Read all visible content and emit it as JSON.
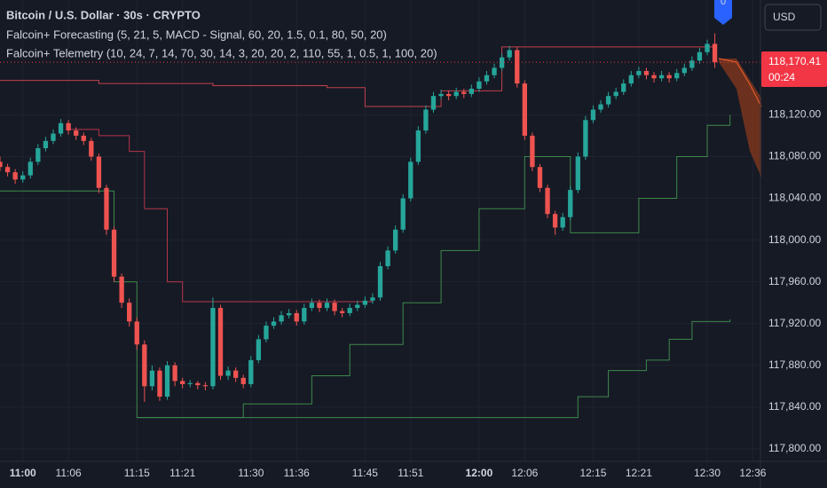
{
  "chart_data": {
    "type": "candlestick",
    "title": "Bitcoin / U.S. Dollar · 30s · CRYPTO",
    "indicators": [
      "Falcoin+ Forecasting (5, 21, 5, MACD - Signal, 60, 20, 1.5, 0.1, 80, 50, 20)",
      "Falcoin+ Telemetry (10, 24, 7, 14, 70, 30, 14, 3, 20, 20, 2, 110, 55, 1, 0.5, 1, 100, 20)"
    ],
    "currency": "USD",
    "last_price_label": "118,170.41",
    "countdown": "00:24",
    "marker_label": "0",
    "up_color": "#26a69a",
    "down_color": "#ef5350",
    "grid": true,
    "x": [
      "10:57",
      "10:58",
      "10:59",
      "11:00",
      "11:01",
      "11:02",
      "11:03",
      "11:04",
      "11:05",
      "11:06",
      "11:07",
      "11:08",
      "11:09",
      "11:10",
      "11:11",
      "11:12",
      "11:13",
      "11:14",
      "11:15",
      "11:16",
      "11:17",
      "11:18",
      "11:19",
      "11:20",
      "11:21",
      "11:22",
      "11:23",
      "11:24",
      "11:25",
      "11:26",
      "11:27",
      "11:28",
      "11:29",
      "11:30",
      "11:31",
      "11:32",
      "11:33",
      "11:34",
      "11:35",
      "11:36",
      "11:37",
      "11:38",
      "11:39",
      "11:40",
      "11:41",
      "11:42",
      "11:43",
      "11:44",
      "11:45",
      "11:46",
      "11:47",
      "11:48",
      "11:49",
      "11:50",
      "11:51",
      "11:52",
      "11:53",
      "11:54",
      "11:55",
      "11:56",
      "11:57",
      "11:58",
      "11:59",
      "12:00",
      "12:01",
      "12:02",
      "12:03",
      "12:04",
      "12:05",
      "12:06",
      "12:07",
      "12:08",
      "12:09",
      "12:10",
      "12:11",
      "12:12",
      "12:13",
      "12:14",
      "12:15",
      "12:16",
      "12:17",
      "12:18",
      "12:19",
      "12:20",
      "12:21",
      "12:22",
      "12:23",
      "12:24",
      "12:25",
      "12:26",
      "12:27",
      "12:28",
      "12:29",
      "12:30",
      "12:31"
    ],
    "candles": [
      [
        118075,
        118080,
        118066,
        118070
      ],
      [
        118070,
        118073,
        118061,
        118065
      ],
      [
        118065,
        118068,
        118054,
        118058
      ],
      [
        118058,
        118066,
        118055,
        118062
      ],
      [
        118062,
        118079,
        118059,
        118075
      ],
      [
        118075,
        118092,
        118072,
        118088
      ],
      [
        118088,
        118099,
        118085,
        118095
      ],
      [
        118095,
        118106,
        118092,
        118102
      ],
      [
        118102,
        118116,
        118099,
        118112
      ],
      [
        118112,
        118115,
        118101,
        118105
      ],
      [
        118105,
        118108,
        118096,
        118100
      ],
      [
        118100,
        118103,
        118091,
        118095
      ],
      [
        118095,
        118098,
        118076,
        118080
      ],
      [
        118080,
        118083,
        118045,
        118050
      ],
      [
        118050,
        118053,
        118005,
        118010
      ],
      [
        118010,
        118013,
        117960,
        117965
      ],
      [
        117965,
        117968,
        117935,
        117940
      ],
      [
        117940,
        117944,
        117917,
        117922
      ],
      [
        117922,
        117926,
        117895,
        117900
      ],
      [
        117900,
        117904,
        117845,
        117860
      ],
      [
        117860,
        117880,
        117856,
        117875
      ],
      [
        117875,
        117878,
        117846,
        117850
      ],
      [
        117850,
        117884,
        117847,
        117880
      ],
      [
        117880,
        117883,
        117860,
        117865
      ],
      [
        117865,
        117868,
        117858,
        117862
      ],
      [
        117862,
        117866,
        117859,
        117863
      ],
      [
        117863,
        117865,
        117857,
        117861
      ],
      [
        117861,
        117864,
        117856,
        117860
      ],
      [
        117860,
        117945,
        117857,
        117935
      ],
      [
        117935,
        117938,
        117866,
        117870
      ],
      [
        117870,
        117879,
        117866,
        117875
      ],
      [
        117875,
        117878,
        117864,
        117868
      ],
      [
        117868,
        117871,
        117858,
        117862
      ],
      [
        117862,
        117889,
        117859,
        117885
      ],
      [
        117885,
        117909,
        117882,
        117905
      ],
      [
        117905,
        117922,
        117902,
        117918
      ],
      [
        117918,
        117926,
        117915,
        117922
      ],
      [
        117922,
        117932,
        117919,
        117928
      ],
      [
        117928,
        117934,
        117925,
        117930
      ],
      [
        117930,
        117933,
        117918,
        117922
      ],
      [
        117922,
        117939,
        117919,
        117935
      ],
      [
        117935,
        117944,
        117932,
        117940
      ],
      [
        117940,
        117943,
        117931,
        117935
      ],
      [
        117935,
        117944,
        117932,
        117940
      ],
      [
        117940,
        117943,
        117928,
        117932
      ],
      [
        117932,
        117935,
        117926,
        117930
      ],
      [
        117930,
        117939,
        117927,
        117935
      ],
      [
        117935,
        117942,
        117932,
        117938
      ],
      [
        117938,
        117946,
        117935,
        117942
      ],
      [
        117942,
        117949,
        117939,
        117945
      ],
      [
        117945,
        117979,
        117942,
        117975
      ],
      [
        117975,
        117994,
        117972,
        117990
      ],
      [
        117990,
        118014,
        117987,
        118010
      ],
      [
        118010,
        118044,
        118007,
        118040
      ],
      [
        118040,
        118079,
        118037,
        118075
      ],
      [
        118075,
        118109,
        118072,
        118105
      ],
      [
        118105,
        118129,
        118102,
        118125
      ],
      [
        118125,
        118142,
        118122,
        118138
      ],
      [
        118138,
        118144,
        118135,
        118140
      ],
      [
        118140,
        118143,
        118134,
        118138
      ],
      [
        118138,
        118146,
        118135,
        118142
      ],
      [
        118142,
        118145,
        118136,
        118140
      ],
      [
        118140,
        118149,
        118137,
        118145
      ],
      [
        118145,
        118156,
        118142,
        118152
      ],
      [
        118152,
        118162,
        118149,
        118158
      ],
      [
        118158,
        118169,
        118155,
        118165
      ],
      [
        118165,
        118179,
        118162,
        118175
      ],
      [
        118175,
        118186,
        118172,
        118182
      ],
      [
        118182,
        118185,
        118146,
        118150
      ],
      [
        118150,
        118153,
        118096,
        118100
      ],
      [
        118100,
        118103,
        118066,
        118070
      ],
      [
        118070,
        118073,
        118046,
        118050
      ],
      [
        118050,
        118053,
        118021,
        118025
      ],
      [
        118025,
        118028,
        118005,
        118012
      ],
      [
        118012,
        118026,
        118009,
        118022
      ],
      [
        118022,
        118052,
        118019,
        118048
      ],
      [
        118048,
        118084,
        118045,
        118080
      ],
      [
        118080,
        118119,
        118077,
        118115
      ],
      [
        118115,
        118129,
        118112,
        118125
      ],
      [
        118125,
        118134,
        118122,
        118130
      ],
      [
        118130,
        118142,
        118127,
        118138
      ],
      [
        118138,
        118146,
        118135,
        118142
      ],
      [
        118142,
        118154,
        118139,
        118150
      ],
      [
        118150,
        118162,
        118147,
        118158
      ],
      [
        118158,
        118166,
        118155,
        118162
      ],
      [
        118162,
        118165,
        118154,
        118158
      ],
      [
        118158,
        118161,
        118151,
        118155
      ],
      [
        118155,
        118162,
        118152,
        118158
      ],
      [
        118158,
        118161,
        118151,
        118155
      ],
      [
        118155,
        118164,
        118152,
        118160
      ],
      [
        118160,
        118169,
        118157,
        118165
      ],
      [
        118165,
        118176,
        118162,
        118172
      ],
      [
        118172,
        118184,
        118169,
        118180
      ],
      [
        118180,
        118192,
        118177,
        118188
      ],
      [
        118188,
        118198,
        118165,
        118170.41
      ]
    ],
    "overlays": [
      {
        "color": "#c2414b",
        "x": [
          "10:57",
          "11:10",
          "11:25",
          "11:40",
          "11:45",
          "11:47",
          "11:55",
          "12:02",
          "12:03",
          "12:31"
        ],
        "values": [
          118153,
          118150,
          118148,
          118146,
          118128,
          118128,
          118143,
          118143,
          118185,
          118185
        ]
      },
      {
        "color": "#b5364a",
        "x": [
          "11:06",
          "11:10",
          "11:14",
          "11:16",
          "11:19",
          "11:21",
          "11:46"
        ],
        "values": [
          118106,
          118100,
          118085,
          118030,
          117960,
          117941,
          117941
        ]
      },
      {
        "color": "#3d8a4a",
        "x": [
          "10:57",
          "11:06",
          "11:12",
          "11:15",
          "11:27",
          "11:29",
          "11:38",
          "11:43",
          "11:50",
          "11:55",
          "12:00",
          "12:06",
          "12:12",
          "12:17",
          "12:21",
          "12:26",
          "12:30",
          "12:33"
        ],
        "values": [
          118047,
          118047,
          117960,
          117830,
          117830,
          117843,
          117870,
          117900,
          117940,
          117990,
          118030,
          118080,
          118007,
          118007,
          118040,
          118080,
          118110,
          118120
        ]
      },
      {
        "color": "#3d8a4a",
        "x": [
          "11:15",
          "12:07",
          "12:13",
          "12:17",
          "12:22",
          "12:25",
          "12:28",
          "12:33"
        ],
        "values": [
          117830,
          117830,
          117850,
          117875,
          117885,
          117905,
          117922,
          117924
        ]
      }
    ],
    "xlim": [
      "10:57",
      "12:37"
    ],
    "xticks": [
      "11:00",
      "11:06",
      "11:15",
      "11:21",
      "11:30",
      "11:36",
      "11:45",
      "11:51",
      "12:00",
      "12:06",
      "12:15",
      "12:21",
      "12:30",
      "12:36"
    ],
    "ylim": [
      117788,
      118230
    ],
    "yticks": [
      {
        "value": 117800,
        "label": "117,800.00"
      },
      {
        "value": 117840,
        "label": "117,840.00"
      },
      {
        "value": 117880,
        "label": "117,880.00"
      },
      {
        "value": 117920,
        "label": "117,920.00"
      },
      {
        "value": 117960,
        "label": "117,960.00"
      },
      {
        "value": 118000,
        "label": "118,000.00"
      },
      {
        "value": 118040,
        "label": "118,040.00"
      },
      {
        "value": 118080,
        "label": "118,080.00"
      },
      {
        "value": 118120,
        "label": "118,120.00"
      }
    ]
  }
}
